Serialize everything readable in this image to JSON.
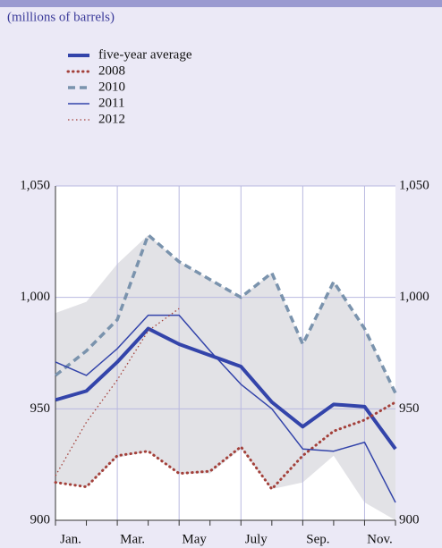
{
  "chart_data": {
    "type": "line",
    "subtitle": "(millions of barrels)",
    "categories": [
      "Jan.",
      null,
      "Mar.",
      null,
      "May",
      null,
      "July",
      null,
      "Sep.",
      null,
      "Nov.",
      null
    ],
    "series": [
      {
        "name": "five-year average",
        "color": "#3344aa",
        "style": "thick",
        "values": [
          954,
          958,
          971,
          986,
          979,
          974,
          969,
          953,
          942,
          952,
          951,
          932
        ]
      },
      {
        "name": "2008",
        "color": "#a3403a",
        "style": "dotted",
        "values": [
          917,
          915,
          929,
          931,
          921,
          922,
          933,
          914,
          929,
          940,
          945,
          953
        ]
      },
      {
        "name": "2010",
        "color": "#7a93ad",
        "style": "dashed",
        "values": [
          965,
          976,
          990,
          1028,
          1016,
          1008,
          1000,
          1011,
          979,
          1007,
          986,
          957
        ]
      },
      {
        "name": "2011",
        "color": "#3344aa",
        "style": "thin",
        "values": [
          971,
          965,
          977,
          992,
          992,
          976,
          961,
          950,
          932,
          931,
          935,
          908
        ]
      },
      {
        "name": "2012",
        "color": "#a3403a",
        "style": "thin-dotted",
        "values": [
          920,
          944,
          963,
          985,
          995,
          null,
          null,
          null,
          null,
          null,
          null,
          null
        ]
      }
    ],
    "band": {
      "color": "#e2e2e6",
      "upper": [
        993,
        998,
        1015,
        1028,
        1016,
        1008,
        1000,
        1011,
        979,
        1007,
        986,
        957
      ],
      "lower": [
        917,
        915,
        928,
        931,
        921,
        921,
        932,
        914,
        917,
        929,
        908,
        900
      ]
    },
    "ylim": [
      900,
      1050
    ],
    "yticks": [
      900,
      950,
      {
        "value": 1000,
        "label": "1,000"
      },
      {
        "value": 1050,
        "label": "1,050"
      }
    ],
    "grid": true
  }
}
